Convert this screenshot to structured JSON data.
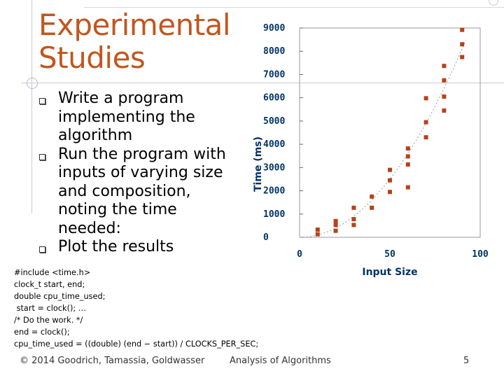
{
  "slide": {
    "title_line1": "Experimental",
    "title_line2": "Studies",
    "bullets": [
      {
        "lines": [
          "Write a program",
          "implementing the",
          "algorithm"
        ]
      },
      {
        "lines": [
          "Run the program with",
          "inputs of varying size",
          "and composition,",
          "noting the time",
          "needed:"
        ]
      },
      {
        "lines": [
          "Plot the results"
        ]
      }
    ],
    "code_lines": [
      "#include <time.h>",
      "clock_t start, end;",
      "double cpu_time_used;",
      " start = clock(); …",
      "/* Do the work. */",
      "end = clock();",
      "cpu_time_used = ((double) (end − start)) / CLOCKS_PER_SEC;"
    ],
    "footer": {
      "left": "© 2014 Goodrich, Tamassia, Goldwasser",
      "center": "Analysis of Algorithms",
      "page_number": "5"
    },
    "colors": {
      "title": "#c1561e",
      "marker": "#b4431a",
      "fit_line": "#999999"
    }
  },
  "chart_data": {
    "type": "scatter",
    "title": "",
    "xlabel": "Input Size",
    "ylabel": "Time (ms)",
    "xlim": [
      0,
      100
    ],
    "ylim": [
      0,
      9000
    ],
    "xticks": [
      "0",
      "50",
      "100"
    ],
    "yticks": [
      "0",
      "1000",
      "2000",
      "3000",
      "4000",
      "5000",
      "6000",
      "7000",
      "8000",
      "9000"
    ],
    "trend": "quadratic",
    "points": [
      [
        10,
        130
      ],
      [
        10,
        330
      ],
      [
        20,
        280
      ],
      [
        20,
        530
      ],
      [
        20,
        700
      ],
      [
        30,
        530
      ],
      [
        30,
        780
      ],
      [
        30,
        1270
      ],
      [
        40,
        1270
      ],
      [
        40,
        1750
      ],
      [
        50,
        1950
      ],
      [
        50,
        2450
      ],
      [
        50,
        2900
      ],
      [
        60,
        2150
      ],
      [
        60,
        3130
      ],
      [
        60,
        3480
      ],
      [
        60,
        3820
      ],
      [
        70,
        4300
      ],
      [
        70,
        4950
      ],
      [
        70,
        5980
      ],
      [
        80,
        5450
      ],
      [
        80,
        6050
      ],
      [
        80,
        6750
      ],
      [
        80,
        7370
      ],
      [
        90,
        7750
      ],
      [
        90,
        8300
      ],
      [
        90,
        8920
      ]
    ]
  }
}
